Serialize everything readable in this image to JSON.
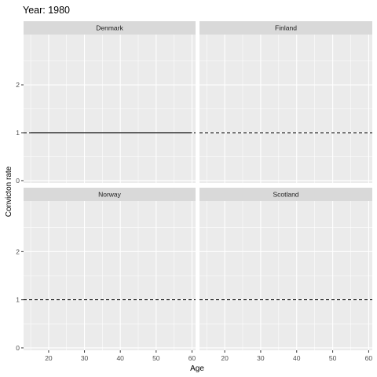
{
  "chart_data": {
    "type": "line",
    "title": "Year: 1980",
    "xlabel": "Age",
    "ylabel": "Convicton rate",
    "xlim": [
      13,
      61
    ],
    "ylim": [
      -0.05,
      3.05
    ],
    "x_ticks": [
      20,
      30,
      40,
      50,
      60
    ],
    "y_ticks": [
      0,
      1,
      2
    ],
    "grid": true,
    "facets": [
      {
        "name": "Denmark",
        "reference_line": {
          "y": 1,
          "style": "dashed"
        },
        "series": [
          {
            "x": [
              15,
              60
            ],
            "y": [
              1,
              1
            ],
            "style": "solid"
          }
        ]
      },
      {
        "name": "Finland",
        "reference_line": {
          "y": 1,
          "style": "dashed"
        },
        "series": []
      },
      {
        "name": "Norway",
        "reference_line": {
          "y": 1,
          "style": "dashed"
        },
        "series": []
      },
      {
        "name": "Scotland",
        "reference_line": {
          "y": 1,
          "style": "dashed"
        },
        "series": []
      }
    ],
    "colors": {
      "panel_background": "#ebebeb",
      "strip_background": "#d9d9d9",
      "grid": "#ffffff",
      "line": "#000000"
    }
  }
}
